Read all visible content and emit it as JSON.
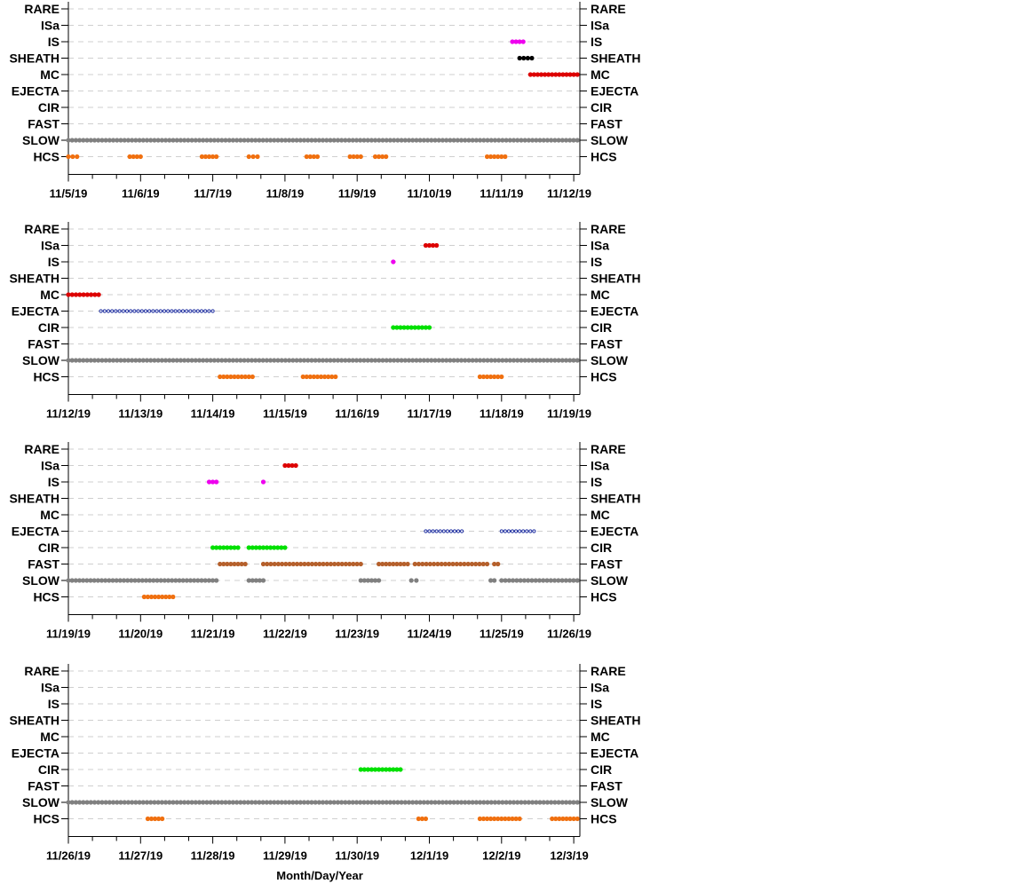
{
  "chart_data": {
    "type": "scatter",
    "title": "",
    "xlabel": "Month/Day/Year",
    "ylabel": "",
    "categories": [
      "RARE",
      "ISa",
      "IS",
      "SHEATH",
      "MC",
      "EJECTA",
      "CIR",
      "FAST",
      "SLOW",
      "HCS"
    ],
    "grid": true,
    "colors": {
      "RARE": "#000000",
      "ISa": "#dd0000",
      "IS": "#ee00ee",
      "SHEATH": "#000000",
      "MC": "#dd0000",
      "EJECTA": "#1f2fa0",
      "CIR": "#00e000",
      "FAST": "#b5602c",
      "SLOW": "#808080",
      "HCS": "#f07010"
    },
    "panels": [
      {
        "xlim": [
          "11/5/19",
          "11/12/19"
        ],
        "ticks": [
          "11/5/19",
          "11/6/19",
          "11/7/19",
          "11/8/19",
          "11/9/19",
          "11/10/19",
          "11/11/19",
          "11/12/19"
        ],
        "series": [
          {
            "category": "HCS",
            "intervals": [
              [
                0.0,
                0.12
              ],
              [
                0.85,
                1.0
              ],
              [
                1.85,
                2.05
              ],
              [
                2.5,
                2.62
              ],
              [
                3.3,
                3.45
              ],
              [
                3.9,
                4.05
              ],
              [
                4.25,
                4.4
              ],
              [
                5.8,
                6.05
              ]
            ]
          },
          {
            "category": "SLOW",
            "intervals": [
              [
                0.0,
                7.05
              ]
            ]
          },
          {
            "category": "MC",
            "intervals": [
              [
                6.4,
                7.05
              ]
            ]
          },
          {
            "category": "SHEATH",
            "intervals": [
              [
                6.25,
                6.42
              ]
            ]
          },
          {
            "category": "IS",
            "intervals": [
              [
                6.15,
                6.3
              ]
            ]
          }
        ]
      },
      {
        "xlim": [
          "11/12/19",
          "11/19/19"
        ],
        "ticks": [
          "11/12/19",
          "11/13/19",
          "11/14/19",
          "11/15/19",
          "11/16/19",
          "11/17/19",
          "11/18/19",
          "11/19/19"
        ],
        "series": [
          {
            "category": "HCS",
            "intervals": [
              [
                2.1,
                2.55
              ],
              [
                3.25,
                3.7
              ],
              [
                5.7,
                6.0
              ]
            ]
          },
          {
            "category": "SLOW",
            "intervals": [
              [
                0.0,
                7.05
              ]
            ]
          },
          {
            "category": "CIR",
            "intervals": [
              [
                4.5,
                5.0
              ]
            ]
          },
          {
            "category": "EJECTA",
            "intervals": [
              [
                0.45,
                2.0
              ]
            ]
          },
          {
            "category": "MC",
            "intervals": [
              [
                0.0,
                0.42
              ]
            ]
          },
          {
            "category": "IS",
            "intervals": [
              [
                4.5,
                4.5
              ]
            ]
          },
          {
            "category": "ISa",
            "intervals": [
              [
                4.95,
                5.1
              ]
            ]
          }
        ]
      },
      {
        "xlim": [
          "11/19/19",
          "11/26/19"
        ],
        "ticks": [
          "11/19/19",
          "11/20/19",
          "11/21/19",
          "11/22/19",
          "11/23/19",
          "11/24/19",
          "11/25/19",
          "11/26/19"
        ],
        "series": [
          {
            "category": "HCS",
            "intervals": [
              [
                1.05,
                1.45
              ]
            ]
          },
          {
            "category": "SLOW",
            "intervals": [
              [
                0.0,
                2.05
              ],
              [
                2.5,
                2.7
              ],
              [
                4.05,
                4.3
              ],
              [
                4.75,
                4.82
              ],
              [
                5.85,
                5.9
              ],
              [
                6.0,
                7.05
              ]
            ]
          },
          {
            "category": "FAST",
            "intervals": [
              [
                2.1,
                2.45
              ],
              [
                2.7,
                4.05
              ],
              [
                4.3,
                4.7
              ],
              [
                4.8,
                5.8
              ],
              [
                5.9,
                5.95
              ]
            ]
          },
          {
            "category": "CIR",
            "intervals": [
              [
                2.0,
                2.35
              ],
              [
                2.5,
                3.0
              ]
            ]
          },
          {
            "category": "EJECTA",
            "intervals": [
              [
                4.95,
                5.45
              ],
              [
                6.0,
                6.45
              ]
            ]
          },
          {
            "category": "IS",
            "intervals": [
              [
                1.95,
                2.05
              ],
              [
                2.7,
                2.7
              ]
            ]
          },
          {
            "category": "ISa",
            "intervals": [
              [
                3.0,
                3.15
              ]
            ]
          }
        ]
      },
      {
        "xlim": [
          "11/26/19",
          "12/3/19"
        ],
        "ticks": [
          "11/26/19",
          "11/27/19",
          "11/28/19",
          "11/29/19",
          "11/30/19",
          "12/1/19",
          "12/2/19",
          "12/3/19"
        ],
        "series": [
          {
            "category": "HCS",
            "intervals": [
              [
                1.1,
                1.3
              ],
              [
                4.85,
                4.95
              ],
              [
                5.7,
                6.25
              ],
              [
                6.7,
                7.05
              ]
            ]
          },
          {
            "category": "SLOW",
            "intervals": [
              [
                0.0,
                7.05
              ]
            ]
          },
          {
            "category": "CIR",
            "intervals": [
              [
                4.05,
                4.6
              ]
            ]
          }
        ]
      }
    ]
  }
}
